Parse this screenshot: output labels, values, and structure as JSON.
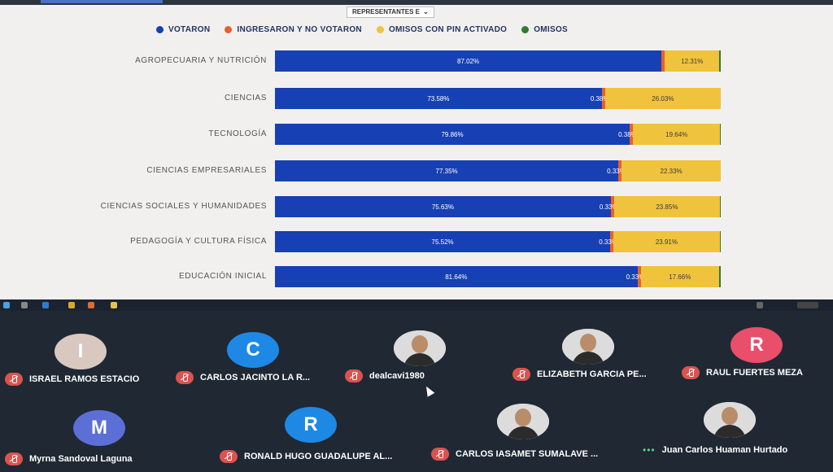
{
  "dropdown": {
    "label": "REPRESENTANTES E",
    "chevron": "chevron-down-icon"
  },
  "legend": [
    {
      "label": "VOTARON",
      "color": "#1740b4"
    },
    {
      "label": "INGRESARON Y NO VOTARON",
      "color": "#e8602c"
    },
    {
      "label": "OMISOS CON PIN ACTIVADO",
      "color": "#f0c33c"
    },
    {
      "label": "OMISOS",
      "color": "#2e7d32"
    }
  ],
  "chart_data": {
    "type": "bar",
    "orientation": "horizontal",
    "stacked": true,
    "categories": [
      "AGROPECUARIA Y NUTRICIÓN",
      "CIENCIAS",
      "TECNOLOGÍA",
      "CIENCIAS EMPRESARIALES",
      "CIENCIAS SOCIALES Y HUMANIDADES",
      "PEDAGOGÍA Y CULTURA FÍSICA",
      "EDUCACIÓN INICIAL"
    ],
    "series": [
      {
        "name": "VOTARON",
        "values": [
          87.02,
          73.58,
          79.86,
          77.35,
          75.63,
          75.52,
          81.64
        ],
        "labels": [
          "87.02%",
          "73.58%",
          "79.86%",
          "77.35%",
          "75.63%",
          "75.52%",
          "81.64%"
        ]
      },
      {
        "name": "INGRESARON Y NO VOTARON",
        "values": [
          0.38,
          0.38,
          0.38,
          0.33,
          0.33,
          0.33,
          0.33
        ],
        "labels": [
          "",
          "0.38%",
          "0.38%",
          "0.33%",
          "0.33%",
          "0.33%",
          "0.33%"
        ]
      },
      {
        "name": "OMISOS CON PIN ACTIVADO",
        "values": [
          12.31,
          26.03,
          19.64,
          22.33,
          23.85,
          23.91,
          17.66
        ],
        "labels": [
          "12.31%",
          "26.03%",
          "19.64%",
          "22.33%",
          "23.85%",
          "23.91%",
          "17.66%"
        ]
      },
      {
        "name": "OMISOS",
        "values": [
          0.29,
          0.01,
          0.12,
          0.0,
          0.19,
          0.24,
          0.37
        ],
        "labels": [
          "",
          "",
          "",
          "",
          "",
          "",
          ""
        ]
      }
    ],
    "xlim": [
      0,
      100
    ]
  },
  "participants": [
    {
      "name": "ISRAEL RAMOS ESTACIO",
      "initial": "I",
      "avatar_color": "#d8c8c0",
      "muted": true
    },
    {
      "name": "CARLOS JACINTO LA R...",
      "initial": "C",
      "avatar_color": "#1e88e5",
      "muted": true
    },
    {
      "name": "dealcavi1980",
      "initial": "",
      "avatar_color": "#dcdcdc",
      "muted": true,
      "photo": true
    },
    {
      "name": "ELIZABETH GARCIA PE...",
      "initial": "",
      "avatar_color": "#dcdcdc",
      "muted": true,
      "photo": true
    },
    {
      "name": "RAUL FUERTES MEZA",
      "initial": "R",
      "avatar_color": "#e94e6b",
      "muted": true
    },
    {
      "name": "Myrna Sandoval Laguna",
      "initial": "M",
      "avatar_color": "#5b6fd6",
      "muted": true
    },
    {
      "name": "RONALD HUGO GUADALUPE AL...",
      "initial": "R",
      "avatar_color": "#1e88e5",
      "muted": true
    },
    {
      "name": "CARLOS IASAMET SUMALAVE ...",
      "initial": "",
      "avatar_color": "#cfcfcf",
      "muted": true,
      "photo": true
    },
    {
      "name": "Juan Carlos Huaman Hurtado",
      "initial": "",
      "avatar_color": "#d8d8d8",
      "muted": false,
      "photo": true
    }
  ]
}
